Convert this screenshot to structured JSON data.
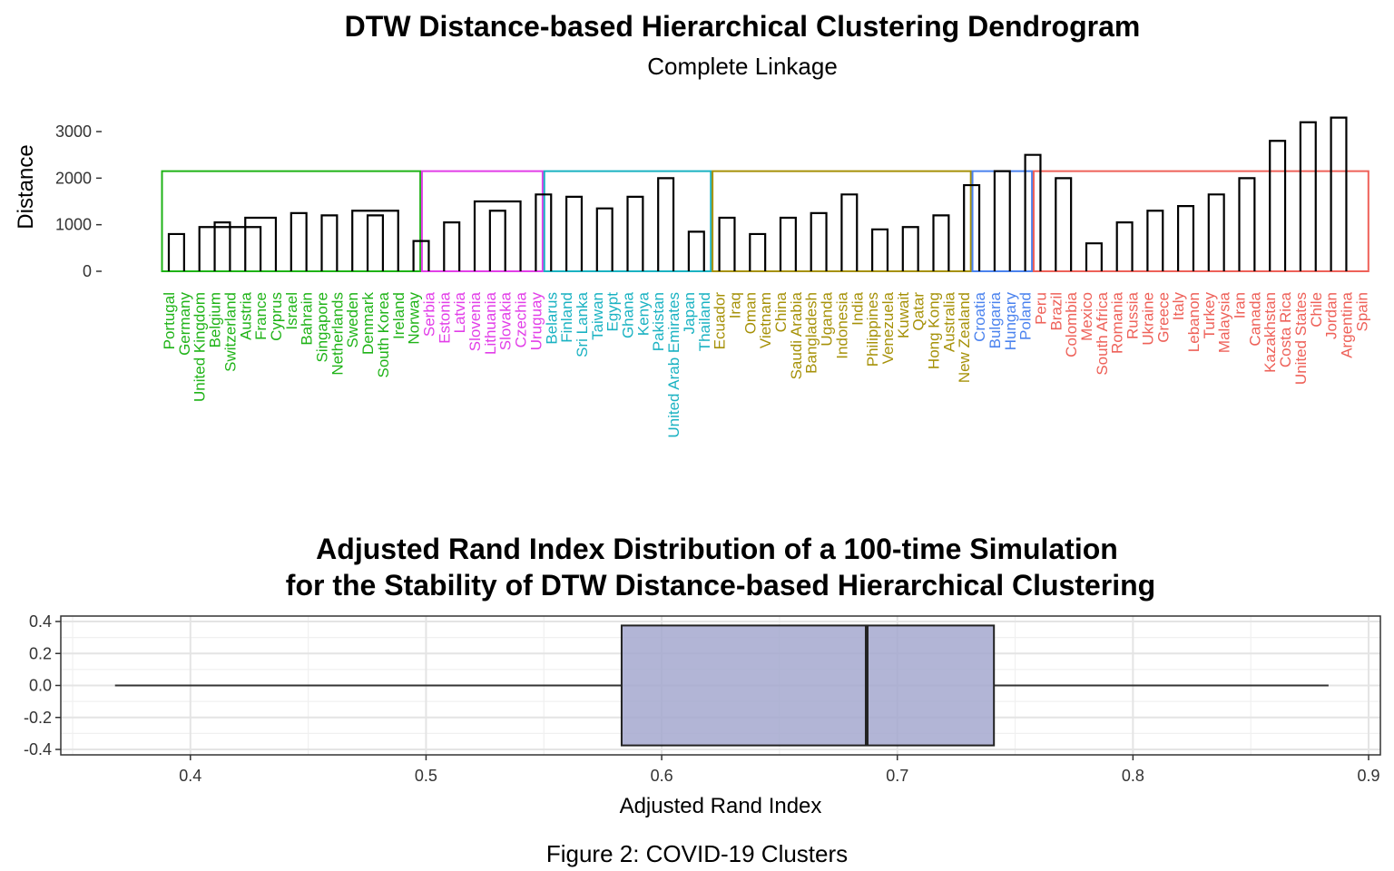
{
  "figure_caption": "Figure 2: COVID-19 Clusters",
  "chart_data": [
    {
      "type": "dendrogram",
      "title": "DTW Distance-based Hierarchical Clustering Dendrogram",
      "subtitle": "Complete Linkage",
      "ylabel": "Distance",
      "yticks": [
        0,
        1000,
        2000,
        3000
      ],
      "yticks_text": [
        "0",
        "1000",
        "2000",
        "3000"
      ],
      "ylim": [
        0,
        3600
      ],
      "leaves": [
        "Portugal",
        "Germany",
        "United Kingdom",
        "Belgium",
        "Switzerland",
        "Austria",
        "France",
        "Cyprus",
        "Israel",
        "Bahrain",
        "Singapore",
        "Netherlands",
        "Sweden",
        "Denmark",
        "South Korea",
        "Ireland",
        "Norway",
        "Serbia",
        "Estonia",
        "Latvia",
        "Slovenia",
        "Lithuania",
        "Slovakia",
        "Czechia",
        "Uruguay",
        "Belarus",
        "Finland",
        "Sri Lanka",
        "Taiwan",
        "Egypt",
        "Ghana",
        "Kenya",
        "Pakistan",
        "United Arab Emirates",
        "Japan",
        "Thailand",
        "Ecuador",
        "Iraq",
        "Oman",
        "Vietnam",
        "China",
        "Saudi Arabia",
        "Bangladesh",
        "Uganda",
        "Indonesia",
        "India",
        "Philippines",
        "Venezuela",
        "Kuwait",
        "Qatar",
        "Hong Kong",
        "Australia",
        "New Zealand",
        "Croatia",
        "Bulgaria",
        "Hungary",
        "Poland",
        "Peru",
        "Brazil",
        "Colombia",
        "Mexico",
        "South Africa",
        "Romania",
        "Russia",
        "Ukraine",
        "Greece",
        "Italy",
        "Lebanon",
        "Turkey",
        "Malaysia",
        "Iran",
        "Canada",
        "Kazakhstan",
        "Costa Rica",
        "United States",
        "Chile",
        "Jordan",
        "Argentina",
        "Spain"
      ],
      "clusters": [
        {
          "start": 0,
          "end": 16,
          "color": "#1fb317"
        },
        {
          "start": 17,
          "end": 24,
          "color": "#e23ee8"
        },
        {
          "start": 25,
          "end": 35,
          "color": "#1ab2c2"
        },
        {
          "start": 36,
          "end": 52,
          "color": "#a69108"
        },
        {
          "start": 53,
          "end": 56,
          "color": "#4a82ee"
        },
        {
          "start": 57,
          "end": 78,
          "color": "#ee6159"
        }
      ],
      "cluster_cut_height": 2150,
      "merges": [
        [
          0,
          1,
          800
        ],
        [
          3,
          4,
          1050
        ],
        [
          2,
          6,
          950
        ],
        [
          5,
          7,
          1150
        ],
        [
          8,
          9,
          1250
        ],
        [
          10,
          11,
          1200
        ],
        [
          13,
          14,
          1200
        ],
        [
          12,
          15,
          1300
        ],
        [
          16,
          17,
          650
        ],
        [
          18,
          19,
          1050
        ],
        [
          21,
          22,
          1300
        ],
        [
          20,
          23,
          1500
        ],
        [
          24,
          25,
          1650
        ],
        [
          26,
          27,
          1600
        ],
        [
          28,
          29,
          1350
        ],
        [
          30,
          31,
          1600
        ],
        [
          32,
          33,
          2000
        ],
        [
          34,
          35,
          850
        ],
        [
          36,
          37,
          1150
        ],
        [
          38,
          39,
          800
        ],
        [
          40,
          41,
          1150
        ],
        [
          42,
          43,
          1250
        ],
        [
          44,
          45,
          1650
        ],
        [
          46,
          47,
          900
        ],
        [
          48,
          49,
          950
        ],
        [
          50,
          51,
          1200
        ],
        [
          52,
          53,
          1850
        ],
        [
          54,
          55,
          2150
        ],
        [
          56,
          57,
          2500
        ],
        [
          58,
          59,
          2000
        ],
        [
          60,
          61,
          600
        ],
        [
          62,
          63,
          1050
        ],
        [
          64,
          65,
          1300
        ],
        [
          66,
          67,
          1400
        ],
        [
          68,
          69,
          1650
        ],
        [
          70,
          71,
          2000
        ],
        [
          72,
          73,
          2800
        ],
        [
          74,
          75,
          3200
        ],
        [
          76,
          77,
          3300
        ]
      ]
    },
    {
      "type": "boxplot",
      "title_lines": [
        "Adjusted Rand Index Distribution of a 100-time Simulation",
        "for the Stability of DTW Distance-based Hierarchical Clustering"
      ],
      "xlabel": "Adjusted Rand Index",
      "xlim": [
        0.345,
        0.905
      ],
      "xticks": [
        0.4,
        0.5,
        0.6,
        0.7,
        0.8,
        0.9
      ],
      "xticks_text": [
        "0.4",
        "0.5",
        "0.6",
        "0.7",
        "0.8",
        "0.9"
      ],
      "yticks": [
        0.4,
        0.2,
        0.0,
        -0.2,
        -0.4
      ],
      "yticks_text": [
        "0.4",
        "0.2",
        "0.0",
        "-0.2",
        "-0.4"
      ],
      "ylim": [
        -0.4,
        0.4
      ],
      "stats": {
        "min": 0.368,
        "q1": 0.583,
        "median": 0.687,
        "q3": 0.741,
        "max": 0.883
      },
      "box_fill": "#a5a8cf",
      "grid": true
    }
  ]
}
